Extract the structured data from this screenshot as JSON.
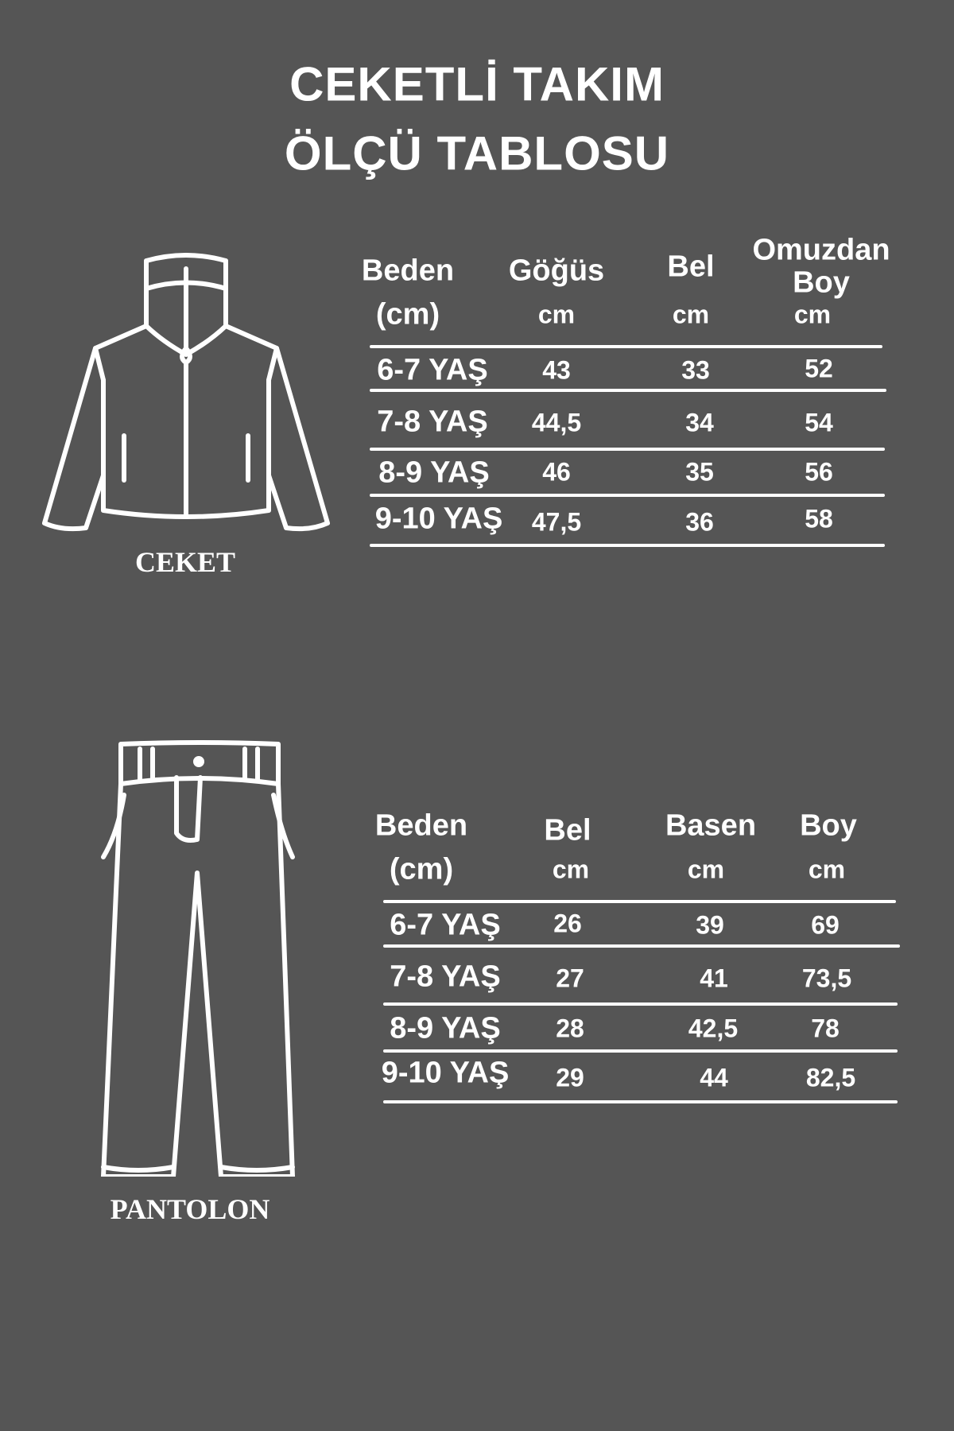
{
  "title": {
    "line1": "CEKETLİ TAKIM",
    "line2": "ÖLÇÜ TABLOSU"
  },
  "jacket": {
    "label": "CEKET",
    "icon": "jacket-icon",
    "headers": [
      {
        "name": "Beden",
        "unit": "(cm)"
      },
      {
        "name": "Göğüs",
        "unit": "cm"
      },
      {
        "name": "Bel",
        "unit": "cm"
      },
      {
        "name": "Omuzdan",
        "name2": "Boy",
        "unit": "cm"
      }
    ],
    "rows": [
      {
        "size": "6-7 YAŞ",
        "gogus": "43",
        "bel": "33",
        "boy": "52"
      },
      {
        "size": "7-8 YAŞ",
        "gogus": "44,5",
        "bel": "34",
        "boy": "54"
      },
      {
        "size": "8-9 YAŞ",
        "gogus": "46",
        "bel": "35",
        "boy": "56"
      },
      {
        "size": "9-10 YAŞ",
        "gogus": "47,5",
        "bel": "36",
        "boy": "58"
      }
    ]
  },
  "pants": {
    "label": "PANTOLON",
    "icon": "pants-icon",
    "headers": [
      {
        "name": "Beden",
        "unit": "(cm)"
      },
      {
        "name": "Bel",
        "unit": "cm"
      },
      {
        "name": "Basen",
        "unit": "cm"
      },
      {
        "name": "Boy",
        "unit": "cm"
      }
    ],
    "rows": [
      {
        "size": "6-7 YAŞ",
        "bel": "26",
        "basen": "39",
        "boy": "69"
      },
      {
        "size": "7-8 YAŞ",
        "bel": "27",
        "basen": "41",
        "boy": "73,5"
      },
      {
        "size": "8-9 YAŞ",
        "bel": "28",
        "basen": "42,5",
        "boy": "78"
      },
      {
        "size": "9-10 YAŞ",
        "bel": "29",
        "basen": "44",
        "boy": "82,5"
      }
    ]
  },
  "colors": {
    "background": "#555555",
    "foreground": "#ffffff"
  }
}
